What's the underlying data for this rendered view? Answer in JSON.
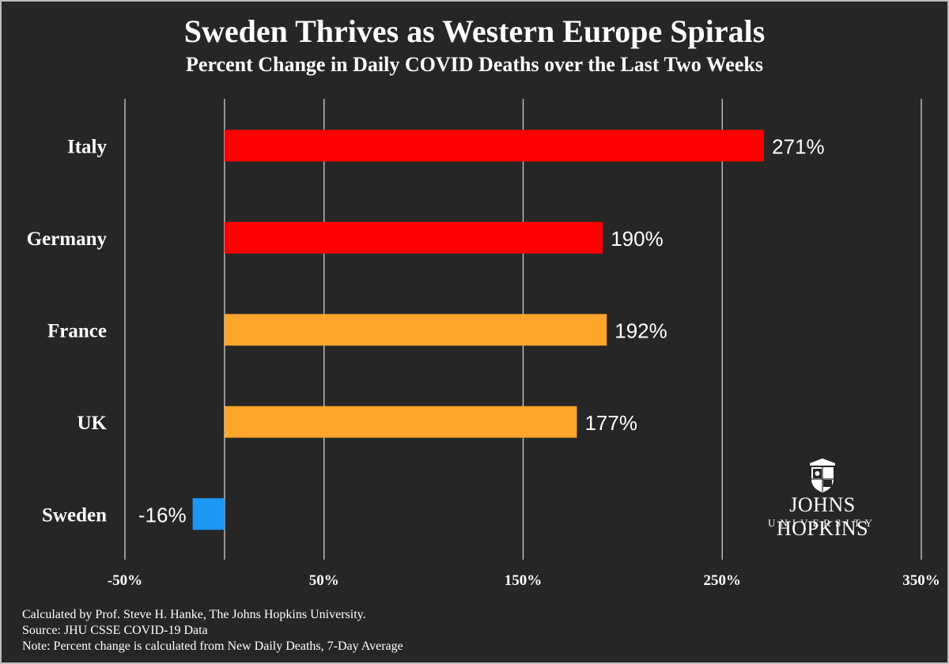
{
  "chart_data": {
    "type": "bar",
    "orientation": "horizontal",
    "title": "Sweden Thrives as Western Europe Spirals",
    "subtitle": "Percent Change in Daily COVID Deaths over the Last Two Weeks",
    "categories": [
      "Italy",
      "Germany",
      "France",
      "UK",
      "Sweden"
    ],
    "values": [
      271,
      190,
      192,
      177,
      -16
    ],
    "value_labels": [
      "271%",
      "190%",
      "192%",
      "177%",
      "-16%"
    ],
    "bar_colors": [
      "#ff0000",
      "#ff0000",
      "#ffa52a",
      "#ffa52a",
      "#1b98f5"
    ],
    "xlim": [
      -50,
      350
    ],
    "xticks": [
      -50,
      50,
      150,
      250,
      350
    ],
    "xtick_labels": [
      "-50%",
      "50%",
      "150%",
      "250%",
      "350%"
    ],
    "gridlines": [
      -50,
      0,
      50,
      150,
      250,
      350
    ],
    "xlabel": "",
    "ylabel": ""
  },
  "footnotes": [
    "Calculated by Prof. Steve H. Hanke, The Johns Hopkins University.",
    "Source: JHU CSSE COVID-19 Data",
    "Note: Percent change is calculated from New Daily Deaths, 7-Day Average"
  ],
  "logo": {
    "name": "JOHNS HOPKINS",
    "sub": "UNIVERSITY"
  },
  "colors": {
    "background": "#262626",
    "text": "#ffffff",
    "gridline": "#cfcfcf"
  }
}
